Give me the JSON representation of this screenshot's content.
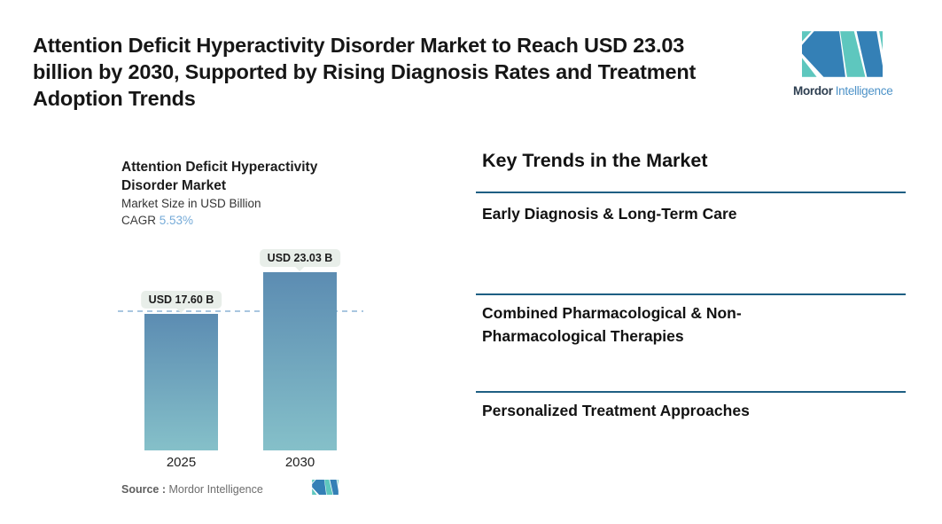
{
  "header": {
    "title": "Attention Deficit Hyperactivity Disorder Market to Reach USD 23.03 billion by 2030, Supported by Rising Diagnosis Rates and Treatment Adoption Trends",
    "title_lines": "Attention Deficit Hyperactivity Disorder Market to Reach USD 23.03\nbillion by 2030, Supported by Rising Diagnosis Rates and Treatment\nAdoption Trends"
  },
  "brand": {
    "name_bold": "Mordor",
    "name_light": "Intelligence",
    "logo_icon": "mordor-intelligence-m-mark"
  },
  "chart": {
    "title_lines": "Attention Deficit Hyperactivity\nDisorder Market",
    "subtitle": "Market Size in USD Billion",
    "cagr_label": "CAGR",
    "cagr_value": "5.53%",
    "source_label": "Source :",
    "source_value": "Mordor Intelligence"
  },
  "chart_data": {
    "type": "bar",
    "title": "Attention Deficit Hyperactivity Disorder Market",
    "subtitle": "Market Size in USD Billion",
    "cagr_percent": 5.53,
    "categories": [
      "2025",
      "2030"
    ],
    "values": [
      17.6,
      23.03
    ],
    "value_labels": [
      "USD 17.60 B",
      "USD 23.03 B"
    ],
    "unit": "USD Billion",
    "ylim": [
      0,
      23.03
    ],
    "reference_line": 17.6,
    "grid": false,
    "legend": "none"
  },
  "trends": {
    "heading": "Key Trends in the Market",
    "items": [
      "Early Diagnosis & Long-Term Care",
      "Combined Pharmacological & Non-\nPharmacological Therapies",
      "Personalized Treatment Approaches"
    ]
  },
  "colors": {
    "accent_cagr": "#76abd8",
    "divider": "#1e5f83",
    "dashed_reference": "#a9c6e0",
    "bar_top": "#5c8cb2",
    "bar_bottom": "#85c0c9",
    "label_pill_bg": "#e8eee9",
    "logo_blue": "#3480b6",
    "logo_teal": "#5ec7be",
    "brand_name_dark": "#2d3e50",
    "brand_name_light": "#4e93c8"
  }
}
